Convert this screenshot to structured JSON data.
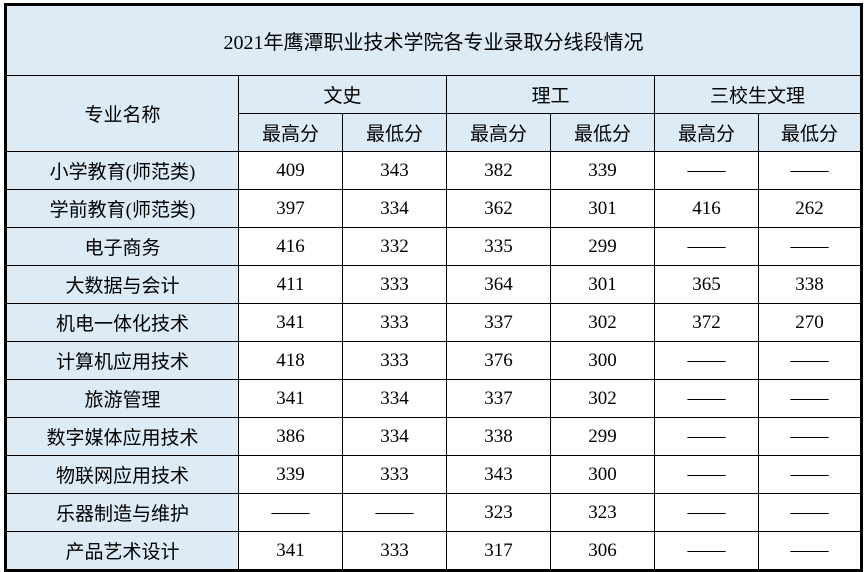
{
  "title": "2021年鹰潭职业技术学院各专业录取分线段情况",
  "headers": {
    "major": "专业名称",
    "groups": [
      "文史",
      "理工",
      "三校生文理"
    ],
    "sub": [
      "最高分",
      "最低分",
      "最高分",
      "最低分",
      "最高分",
      "最低分"
    ]
  },
  "rows": [
    {
      "name": "小学教育(师范类)",
      "values": [
        "409",
        "343",
        "382",
        "339",
        "——",
        "——"
      ]
    },
    {
      "name": "学前教育(师范类)",
      "values": [
        "397",
        "334",
        "362",
        "301",
        "416",
        "262"
      ]
    },
    {
      "name": "电子商务",
      "values": [
        "416",
        "332",
        "335",
        "299",
        "——",
        "——"
      ]
    },
    {
      "name": "大数据与会计",
      "values": [
        "411",
        "333",
        "364",
        "301",
        "365",
        "338"
      ]
    },
    {
      "name": "机电一体化技术",
      "values": [
        "341",
        "333",
        "337",
        "302",
        "372",
        "270"
      ]
    },
    {
      "name": "计算机应用技术",
      "values": [
        "418",
        "333",
        "376",
        "300",
        "——",
        "——"
      ]
    },
    {
      "name": "旅游管理",
      "values": [
        "341",
        "334",
        "337",
        "302",
        "——",
        "——"
      ]
    },
    {
      "name": "数字媒体应用技术",
      "values": [
        "386",
        "334",
        "338",
        "299",
        "——",
        "——"
      ]
    },
    {
      "name": "物联网应用技术",
      "values": [
        "339",
        "333",
        "343",
        "300",
        "——",
        "——"
      ]
    },
    {
      "name": "乐器制造与维护",
      "values": [
        "——",
        "——",
        "323",
        "323",
        "——",
        "——"
      ]
    },
    {
      "name": "产品艺术设计",
      "values": [
        "341",
        "333",
        "317",
        "306",
        "——",
        "——"
      ]
    }
  ],
  "colors": {
    "header_bg": "#ddebf7",
    "border": "#000000"
  }
}
